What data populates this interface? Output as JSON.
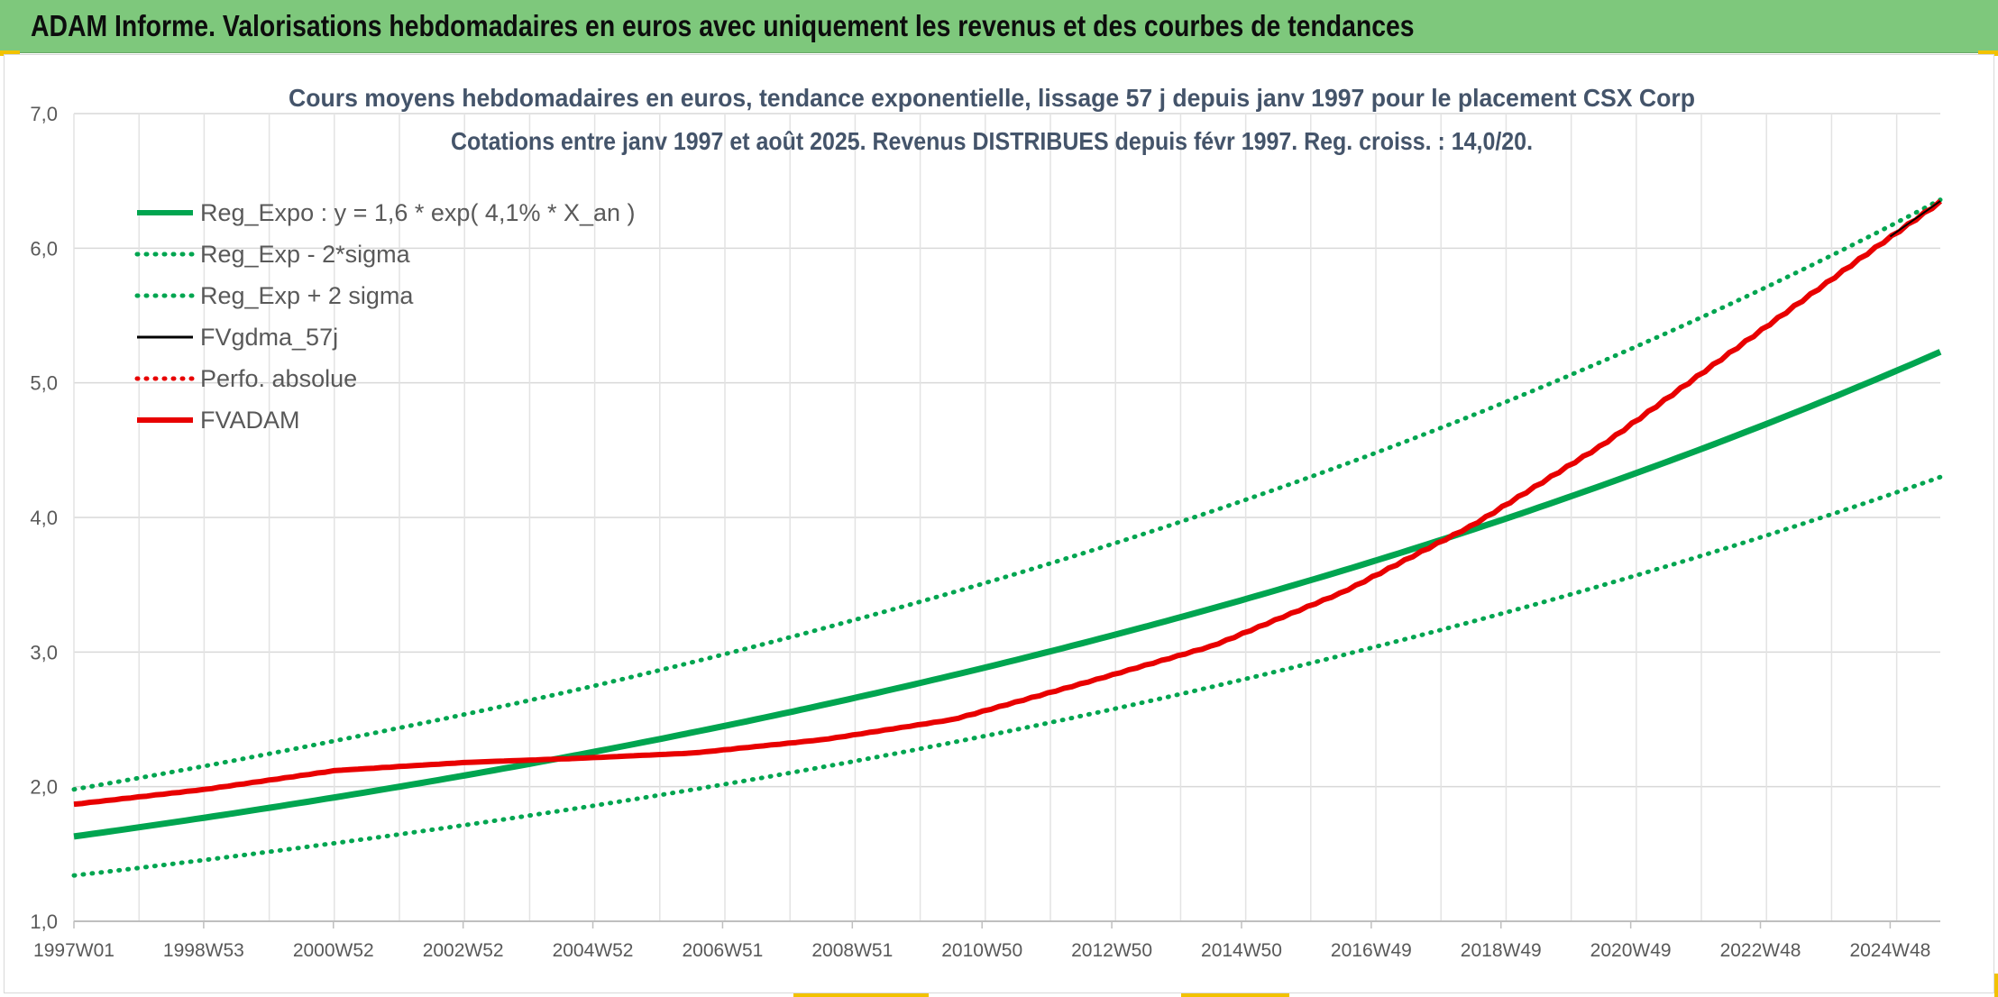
{
  "banner": {
    "title": "ADAM Informe. Valorisations hebdomadaires en euros avec uniquement les revenus et des courbes de tendances"
  },
  "colors": {
    "banner_bg": "#7ec87c",
    "trend": "#00a550",
    "actual": "#e80000",
    "smoothed": "#000000",
    "accent": "#f2c200"
  },
  "chart_data": {
    "type": "line",
    "title": "Cours moyens hebdomadaires en euros, tendance exponentielle, lissage 57 j depuis janv 1997 pour le placement CSX Corp",
    "subtitle": "Cotations entre janv 1997 et août 2025. Revenus DISTRIBUES depuis févr 1997. Reg. croiss. : 14,0/20.",
    "xlabel": "",
    "ylabel": "",
    "ylim": [
      1.0,
      7.0
    ],
    "yticks": [
      "1,0",
      "2,0",
      "3,0",
      "4,0",
      "5,0",
      "6,0",
      "7,0"
    ],
    "xlim": [
      1997.0,
      2025.67
    ],
    "xtick_labels": [
      "1997W01",
      "1998W53",
      "2000W52",
      "2002W52",
      "2004W52",
      "2006W51",
      "2008W51",
      "2010W50",
      "2012W50",
      "2014W50",
      "2016W49",
      "2018W49",
      "2020W49",
      "2022W48",
      "2024W48"
    ],
    "grid": true,
    "legend_position": "top-left",
    "series": [
      {
        "name": "Reg_Expo : y = 1,6 * exp( 4,1% *  X_an )",
        "style": "solid-thick",
        "color": "#00a550",
        "x": [
          1997.0,
          2001.0,
          2005.0,
          2009.0,
          2013.0,
          2017.0,
          2021.0,
          2025.67
        ],
        "y": [
          1.63,
          1.92,
          2.26,
          2.66,
          3.13,
          3.68,
          4.33,
          5.23
        ]
      },
      {
        "name": "Reg_Exp - 2*sigma",
        "style": "dotted",
        "color": "#00a550",
        "x": [
          1997.0,
          2001.0,
          2005.0,
          2009.0,
          2013.0,
          2017.0,
          2021.0,
          2025.67
        ],
        "y": [
          1.34,
          1.58,
          1.86,
          2.19,
          2.58,
          3.04,
          3.57,
          4.3
        ]
      },
      {
        "name": "Reg_Exp + 2 sigma",
        "style": "dotted",
        "color": "#00a550",
        "x": [
          1997.0,
          2001.0,
          2005.0,
          2009.0,
          2013.0,
          2017.0,
          2021.0,
          2025.67
        ],
        "y": [
          1.98,
          2.34,
          2.75,
          3.24,
          3.81,
          4.48,
          5.27,
          6.36
        ]
      },
      {
        "name": "FVgdma_57j",
        "style": "solid",
        "color": "#000000",
        "x": [
          1997.0,
          1999.0,
          2001.0,
          2003.0,
          2004.7,
          2006.5,
          2008.5,
          2010.5,
          2012.5,
          2014.5,
          2016.5,
          2018.5,
          2020.5,
          2022.5,
          2024.5,
          2025.67
        ],
        "y": [
          1.87,
          1.98,
          2.12,
          2.18,
          2.21,
          2.25,
          2.35,
          2.5,
          2.77,
          3.05,
          3.45,
          3.95,
          4.55,
          5.25,
          5.95,
          6.35
        ]
      },
      {
        "name": "Perfo. absolue",
        "style": "dotted",
        "color": "#e80000",
        "x": [],
        "y": []
      },
      {
        "name": "FVADAM",
        "style": "solid-thick-stepped",
        "color": "#e80000",
        "x": [
          1997.0,
          1999.0,
          2001.0,
          2003.0,
          2004.7,
          2006.5,
          2008.5,
          2010.5,
          2012.5,
          2014.5,
          2016.5,
          2018.5,
          2020.5,
          2022.5,
          2024.5,
          2025.67
        ],
        "y": [
          1.87,
          1.98,
          2.12,
          2.18,
          2.21,
          2.25,
          2.35,
          2.5,
          2.77,
          3.05,
          3.45,
          3.95,
          4.55,
          5.25,
          5.95,
          6.35
        ]
      }
    ]
  }
}
